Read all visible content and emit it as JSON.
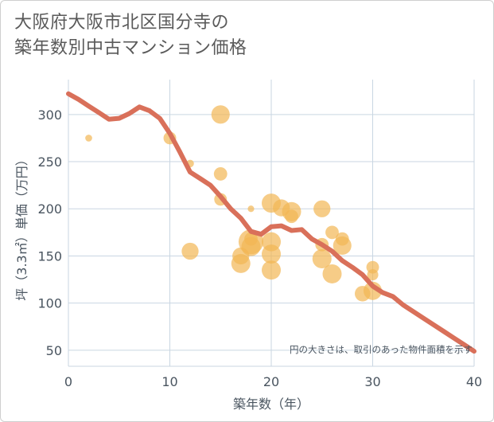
{
  "title_line1": "大阪府大阪市北区国分寺の",
  "title_line2": "築年数別中古マンション価格",
  "chart_data": {
    "type": "scatter",
    "title": "大阪府大阪市北区国分寺の築年数別中古マンション価格",
    "xlabel": "築年数（年）",
    "ylabel": "坪（3.3㎡）単価（万円）",
    "xlim": [
      0,
      40
    ],
    "ylim": [
      33,
      337
    ],
    "x_ticks": [
      0,
      10,
      20,
      30,
      40
    ],
    "y_ticks": [
      50,
      100,
      150,
      200,
      250,
      300
    ],
    "grid": true,
    "annotation": "円の大きさは、取引のあった物件面積を示す",
    "colors": {
      "bubble": "#f2b654",
      "line": "#d9705a",
      "grid": "#c9d6e2"
    },
    "series": [
      {
        "name": "取引物件",
        "type": "scatter",
        "points": [
          {
            "x": 2,
            "y": 275,
            "size": 0.15
          },
          {
            "x": 10,
            "y": 275,
            "size": 0.55
          },
          {
            "x": 12,
            "y": 248,
            "size": 0.2
          },
          {
            "x": 12,
            "y": 155,
            "size": 0.85
          },
          {
            "x": 15,
            "y": 300,
            "size": 0.95
          },
          {
            "x": 15,
            "y": 237,
            "size": 0.6
          },
          {
            "x": 15,
            "y": 210,
            "size": 0.55
          },
          {
            "x": 17,
            "y": 150,
            "size": 0.85
          },
          {
            "x": 17,
            "y": 142,
            "size": 1.0
          },
          {
            "x": 18,
            "y": 200,
            "size": 0.12
          },
          {
            "x": 18,
            "y": 168,
            "size": 0.6
          },
          {
            "x": 18,
            "y": 165,
            "size": 1.4
          },
          {
            "x": 18,
            "y": 160,
            "size": 1.0
          },
          {
            "x": 20,
            "y": 206,
            "size": 1.0
          },
          {
            "x": 20,
            "y": 165,
            "size": 1.0
          },
          {
            "x": 20,
            "y": 152,
            "size": 1.0
          },
          {
            "x": 20,
            "y": 135,
            "size": 1.0
          },
          {
            "x": 21,
            "y": 201,
            "size": 0.85
          },
          {
            "x": 22,
            "y": 197,
            "size": 1.0
          },
          {
            "x": 22,
            "y": 192,
            "size": 0.6
          },
          {
            "x": 25,
            "y": 200,
            "size": 0.85
          },
          {
            "x": 25,
            "y": 162,
            "size": 0.6
          },
          {
            "x": 25,
            "y": 147,
            "size": 1.0
          },
          {
            "x": 26,
            "y": 175,
            "size": 0.6
          },
          {
            "x": 26,
            "y": 131,
            "size": 1.0
          },
          {
            "x": 27,
            "y": 168,
            "size": 0.6
          },
          {
            "x": 27,
            "y": 161,
            "size": 0.95
          },
          {
            "x": 29,
            "y": 110,
            "size": 0.75
          },
          {
            "x": 30,
            "y": 138,
            "size": 0.55
          },
          {
            "x": 30,
            "y": 130,
            "size": 0.45
          },
          {
            "x": 30,
            "y": 113,
            "size": 0.95
          }
        ]
      },
      {
        "name": "平均",
        "type": "line",
        "points": [
          {
            "x": 0,
            "y": 322
          },
          {
            "x": 1,
            "y": 316
          },
          {
            "x": 2,
            "y": 309
          },
          {
            "x": 3,
            "y": 302
          },
          {
            "x": 4,
            "y": 295
          },
          {
            "x": 5,
            "y": 296
          },
          {
            "x": 6,
            "y": 301
          },
          {
            "x": 7,
            "y": 308
          },
          {
            "x": 8,
            "y": 304
          },
          {
            "x": 9,
            "y": 296
          },
          {
            "x": 10,
            "y": 280
          },
          {
            "x": 11,
            "y": 260
          },
          {
            "x": 12,
            "y": 239
          },
          {
            "x": 13,
            "y": 232
          },
          {
            "x": 14,
            "y": 225
          },
          {
            "x": 15,
            "y": 213
          },
          {
            "x": 16,
            "y": 200
          },
          {
            "x": 17,
            "y": 190
          },
          {
            "x": 18,
            "y": 176
          },
          {
            "x": 19,
            "y": 173
          },
          {
            "x": 20,
            "y": 181
          },
          {
            "x": 21,
            "y": 182
          },
          {
            "x": 22,
            "y": 177
          },
          {
            "x": 23,
            "y": 178
          },
          {
            "x": 24,
            "y": 168
          },
          {
            "x": 25,
            "y": 162
          },
          {
            "x": 26,
            "y": 155
          },
          {
            "x": 27,
            "y": 145
          },
          {
            "x": 28,
            "y": 138
          },
          {
            "x": 29,
            "y": 130
          },
          {
            "x": 30,
            "y": 118
          },
          {
            "x": 31,
            "y": 111
          },
          {
            "x": 32,
            "y": 107
          },
          {
            "x": 33,
            "y": 98
          },
          {
            "x": 34,
            "y": 91
          },
          {
            "x": 35,
            "y": 84
          },
          {
            "x": 36,
            "y": 77
          },
          {
            "x": 37,
            "y": 70
          },
          {
            "x": 38,
            "y": 63
          },
          {
            "x": 39,
            "y": 56
          },
          {
            "x": 40,
            "y": 49
          }
        ]
      }
    ]
  }
}
